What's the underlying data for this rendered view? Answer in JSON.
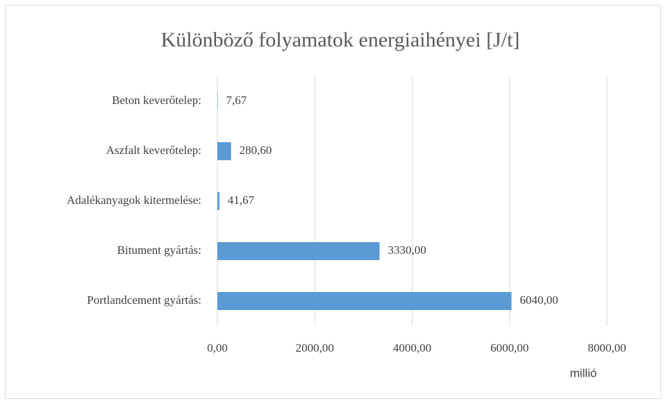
{
  "chart_data": {
    "type": "bar",
    "orientation": "horizontal",
    "title": "Különböző folyamatok energiaihényei [J/t]",
    "x_unit_label": "millió",
    "categories": [
      "Beton keverőtelep:",
      "Aszfalt keverőtelep:",
      "Adalékanyagok kitermelése:",
      "Bitument gyártás:",
      "Portlandcement gyártás:"
    ],
    "values": [
      7.67,
      280.6,
      41.67,
      3330,
      6040
    ],
    "value_labels": [
      "7,67",
      "280,60",
      "41,67",
      "3330,00",
      "6040,00"
    ],
    "color": "#5b9bd5",
    "xlim": [
      0,
      8000
    ],
    "xticks": [
      {
        "value": 0,
        "label": "0,00"
      },
      {
        "value": 2000,
        "label": "2000,00"
      },
      {
        "value": 4000,
        "label": "4000,00"
      },
      {
        "value": 6000,
        "label": "6000,00"
      },
      {
        "value": 8000,
        "label": "8000,00"
      }
    ],
    "grid": true
  }
}
